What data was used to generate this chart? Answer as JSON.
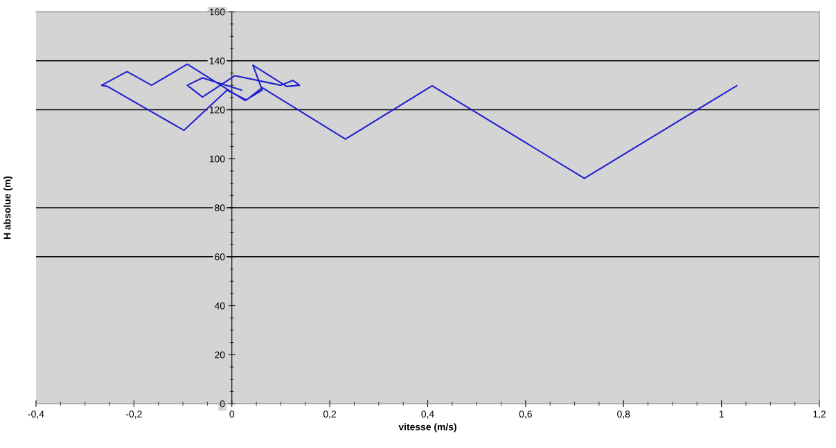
{
  "chart_data": {
    "type": "line",
    "xlabel": "vitesse (m/s)",
    "ylabel": "H absolue (m)",
    "x": [
      1.031,
      0.72,
      0.409,
      0.232,
      0.062,
      0.03,
      -0.01,
      -0.098,
      -0.254,
      -0.266,
      -0.214,
      -0.164,
      -0.091,
      0.027,
      0.062,
      0.043,
      0.112,
      0.138,
      0.125,
      0.1,
      0.006,
      -0.06,
      -0.091,
      -0.06,
      0.02
    ],
    "values": [
      129.8,
      92.0,
      129.8,
      108.0,
      129.0,
      124.0,
      128.0,
      111.6,
      129.5,
      130.0,
      135.6,
      130.0,
      138.6,
      123.8,
      128.0,
      138.2,
      129.5,
      130.0,
      132.0,
      130.0,
      133.9,
      125.2,
      130.0,
      133.0,
      128.0
    ],
    "color": "#2020d0",
    "xlim": [
      -0.4,
      1.2
    ],
    "ylim": [
      0,
      160
    ],
    "xticks": [
      {
        "value": -0.4,
        "label": "-0,4"
      },
      {
        "value": -0.2,
        "label": "-0,2"
      },
      0,
      {
        "value": 0.2,
        "label": "0,2"
      },
      {
        "value": 0.4,
        "label": "0,4"
      },
      {
        "value": 0.6,
        "label": "0,6"
      },
      {
        "value": 0.8,
        "label": "0,8"
      },
      1,
      {
        "value": 1.2,
        "label": "1,2"
      }
    ],
    "yticks": [
      0,
      20,
      40,
      60,
      80,
      100,
      120,
      140,
      160
    ],
    "ref_lines": [
      {
        "axis": "y",
        "value": 140,
        "color": "#000000"
      },
      {
        "axis": "y",
        "value": 120,
        "color": "#000000"
      },
      {
        "axis": "y",
        "value": 80,
        "color": "#000000"
      },
      {
        "axis": "y",
        "value": 60,
        "color": "#000000"
      }
    ],
    "grid": false,
    "legend": false,
    "marker": "none",
    "line_style": "solid"
  }
}
